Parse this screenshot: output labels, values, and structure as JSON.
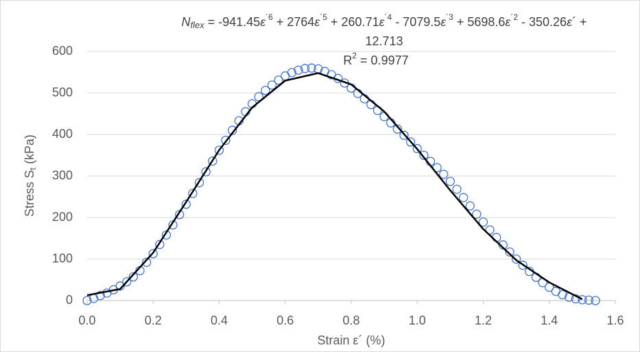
{
  "chart_data": {
    "type": "scatter",
    "equation_lines": [
      [
        {
          "text": "N",
          "style": "italic"
        },
        {
          "text": "flex",
          "style": "italic-sub"
        },
        {
          "text": " = -941.45"
        },
        {
          "text": "ε",
          "style": "italic"
        },
        {
          "text": "´6",
          "style": "sup"
        },
        {
          "text": " + 2764"
        },
        {
          "text": "ε",
          "style": "italic"
        },
        {
          "text": "´5",
          "style": "sup"
        },
        {
          "text": " + 260.71"
        },
        {
          "text": "ε",
          "style": "italic"
        },
        {
          "text": "´4",
          "style": "sup"
        },
        {
          "text": " - 7079.5"
        },
        {
          "text": "ε",
          "style": "italic"
        },
        {
          "text": "´3",
          "style": "sup"
        },
        {
          "text": " + 5698.6"
        },
        {
          "text": "ε",
          "style": "italic"
        },
        {
          "text": "´2",
          "style": "sup"
        },
        {
          "text": " - 350.26"
        },
        {
          "text": "ε",
          "style": "italic"
        },
        {
          "text": "´ +"
        }
      ],
      [
        {
          "text": "12.713"
        }
      ],
      [
        {
          "text": "R"
        },
        {
          "text": "2",
          "style": "sup"
        },
        {
          "text": " = 0.9977"
        }
      ]
    ],
    "x_label": [
      {
        "text": "Strain ε´ (%)"
      }
    ],
    "y_label": [
      {
        "text": "Stress S"
      },
      {
        "text": "t",
        "style": "sub"
      },
      {
        "text": " (kPa)"
      }
    ],
    "xlim": [
      0,
      1.6
    ],
    "xticks": [
      {
        "value": 0,
        "label": "0.0"
      },
      0.2,
      0.4,
      0.6,
      0.8,
      {
        "value": 1,
        "label": "1.0"
      },
      1.2,
      1.4,
      1.6
    ],
    "ylim": [
      0,
      600
    ],
    "yticks": [
      0,
      100,
      200,
      300,
      400,
      500,
      600
    ],
    "grid": true,
    "series": [
      {
        "kind": "markers",
        "color": "#4472c4",
        "x": [
          0,
          0.02,
          0.04,
          0.06,
          0.08,
          0.1,
          0.12,
          0.14,
          0.16,
          0.18,
          0.2,
          0.22,
          0.24,
          0.26,
          0.28,
          0.3,
          0.32,
          0.34,
          0.36,
          0.38,
          0.4,
          0.42,
          0.44,
          0.46,
          0.48,
          0.5,
          0.52,
          0.54,
          0.56,
          0.58,
          0.6,
          0.62,
          0.64,
          0.66,
          0.68,
          0.7,
          0.72,
          0.74,
          0.76,
          0.78,
          0.8,
          0.82,
          0.84,
          0.86,
          0.88,
          0.9,
          0.92,
          0.94,
          0.96,
          0.98,
          1,
          1.02,
          1.04,
          1.06,
          1.08,
          1.1,
          1.12,
          1.14,
          1.16,
          1.18,
          1.2,
          1.22,
          1.24,
          1.26,
          1.28,
          1.3,
          1.32,
          1.34,
          1.36,
          1.38,
          1.4,
          1.42,
          1.44,
          1.46,
          1.48,
          1.5,
          1.52,
          1.54
        ],
        "values": [
          0,
          5,
          12,
          18,
          26,
          35,
          45,
          57,
          72,
          92,
          113,
          135,
          158,
          182,
          207,
          232,
          258,
          284,
          310,
          336,
          362,
          386,
          410,
          433,
          455,
          474,
          491,
          506,
          519,
          531,
          541,
          549,
          555,
          559,
          560,
          558,
          552,
          544,
          535,
          524,
          512,
          499,
          486,
          472,
          458,
          443,
          428,
          413,
          398,
          382,
          366,
          350,
          335,
          320,
          304,
          287,
          268,
          248,
          228,
          208,
          189,
          170,
          152,
          134,
          117,
          100,
          85,
          70,
          56,
          43,
          32,
          22,
          14,
          8,
          4,
          2,
          1,
          0
        ]
      },
      {
        "kind": "line",
        "color": "#000000",
        "x": [
          0,
          0.1,
          0.2,
          0.3,
          0.4,
          0.5,
          0.6,
          0.7,
          0.8,
          0.9,
          1,
          1.1,
          1.2,
          1.3,
          1.4,
          1.5
        ],
        "values": [
          12.7,
          27.7,
          115.2,
          237.5,
          362.4,
          465.2,
          529.7,
          547.9,
          520.6,
          455.3,
          364.8,
          265.3,
          172.1,
          97.2,
          43.7,
          3.1
        ]
      }
    ]
  }
}
